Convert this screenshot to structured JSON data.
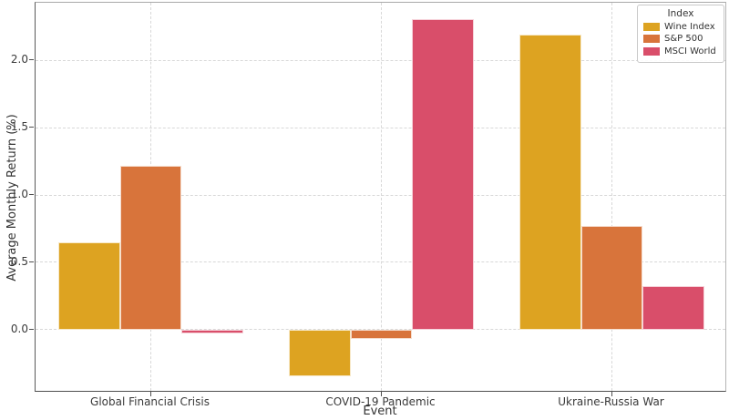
{
  "chart_data": {
    "type": "bar",
    "title": "",
    "xlabel": "Event",
    "ylabel": "Average Monthly Return (%)",
    "categories": [
      "Global Financial Crisis",
      "COVID-19 Pandemic",
      "Ukraine-Russia War"
    ],
    "series": [
      {
        "name": "Wine Index",
        "color": "#dda321",
        "values": [
          0.65,
          -0.35,
          2.19
        ]
      },
      {
        "name": "S&P 500",
        "color": "#d8743b",
        "values": [
          1.22,
          -0.07,
          0.77
        ]
      },
      {
        "name": "MSCI World",
        "color": "#d94e6a",
        "values": [
          -0.03,
          2.31,
          0.32
        ]
      }
    ],
    "yticks": [
      0.0,
      0.5,
      1.0,
      1.5,
      2.0
    ],
    "ylim": [
      -0.47,
      2.43
    ],
    "group_width_fraction": 0.8,
    "legend": {
      "title": "Index",
      "position": "upper right"
    },
    "grid": {
      "style": "dashed",
      "color": "#d8d8d8",
      "x": true,
      "y": true
    },
    "background": "#ffffff"
  }
}
